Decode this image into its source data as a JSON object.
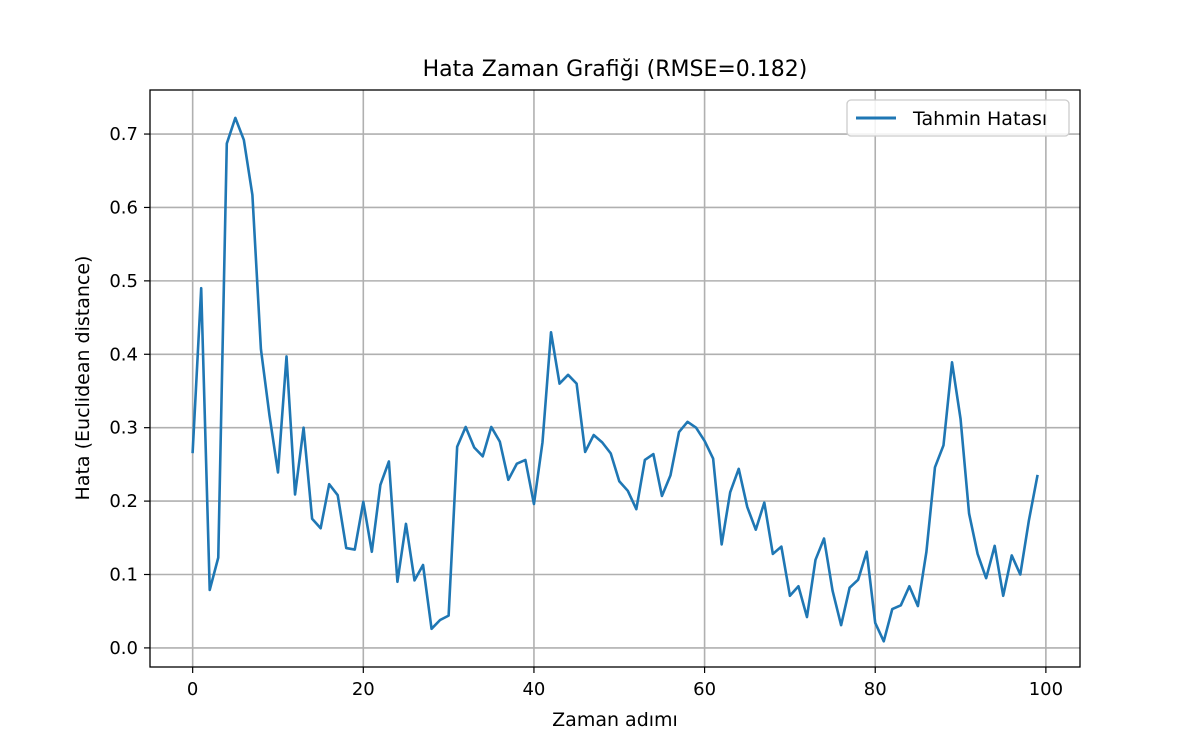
{
  "chart_data": {
    "type": "line",
    "title": "Hata Zaman Grafiği (RMSE=0.182)",
    "xlabel": "Zaman adımı",
    "ylabel": "Hata (Euclidean distance)",
    "xlim": [
      -5,
      104
    ],
    "ylim": [
      -0.026,
      0.76
    ],
    "xticks": [
      0,
      20,
      40,
      60,
      80,
      100
    ],
    "xtick_labels": [
      "0",
      "20",
      "40",
      "60",
      "80",
      "100"
    ],
    "yticks": [
      0.0,
      0.1,
      0.2,
      0.3,
      0.4,
      0.5,
      0.6,
      0.7
    ],
    "ytick_labels": [
      "0.0",
      "0.1",
      "0.2",
      "0.3",
      "0.4",
      "0.5",
      "0.6",
      "0.7"
    ],
    "grid": true,
    "legend_position": "top-right",
    "series": [
      {
        "name": "Tahmin Hatası",
        "color": "#1f77b4",
        "x": [
          0,
          1,
          2,
          3,
          4,
          5,
          6,
          7,
          8,
          9,
          10,
          11,
          12,
          13,
          14,
          15,
          16,
          17,
          18,
          19,
          20,
          21,
          22,
          23,
          24,
          25,
          26,
          27,
          28,
          29,
          30,
          31,
          32,
          33,
          34,
          35,
          36,
          37,
          38,
          39,
          40,
          41,
          42,
          43,
          44,
          45,
          46,
          47,
          48,
          49,
          50,
          51,
          52,
          53,
          54,
          55,
          56,
          57,
          58,
          59,
          60,
          61,
          62,
          63,
          64,
          65,
          66,
          67,
          68,
          69,
          70,
          71,
          72,
          73,
          74,
          75,
          76,
          77,
          78,
          79,
          80,
          81,
          82,
          83,
          84,
          85,
          86,
          87,
          88,
          89,
          90,
          91,
          92,
          93,
          94,
          95,
          96,
          97,
          98,
          99
        ],
        "values": [
          0.267,
          0.49,
          0.079,
          0.123,
          0.687,
          0.722,
          0.692,
          0.617,
          0.407,
          0.317,
          0.239,
          0.397,
          0.209,
          0.3,
          0.176,
          0.163,
          0.223,
          0.208,
          0.136,
          0.134,
          0.199,
          0.131,
          0.222,
          0.254,
          0.09,
          0.169,
          0.092,
          0.113,
          0.026,
          0.038,
          0.044,
          0.274,
          0.301,
          0.273,
          0.261,
          0.301,
          0.281,
          0.229,
          0.251,
          0.256,
          0.196,
          0.28,
          0.43,
          0.36,
          0.372,
          0.36,
          0.267,
          0.29,
          0.28,
          0.265,
          0.227,
          0.214,
          0.189,
          0.256,
          0.264,
          0.207,
          0.235,
          0.294,
          0.308,
          0.3,
          0.282,
          0.258,
          0.141,
          0.212,
          0.244,
          0.192,
          0.161,
          0.198,
          0.128,
          0.138,
          0.071,
          0.084,
          0.042,
          0.12,
          0.149,
          0.078,
          0.031,
          0.082,
          0.093,
          0.131,
          0.034,
          0.009,
          0.053,
          0.058,
          0.084,
          0.057,
          0.131,
          0.246,
          0.276,
          0.389,
          0.312,
          0.183,
          0.128,
          0.095,
          0.139,
          0.071,
          0.126,
          0.1,
          0.173,
          0.234
        ]
      }
    ]
  }
}
